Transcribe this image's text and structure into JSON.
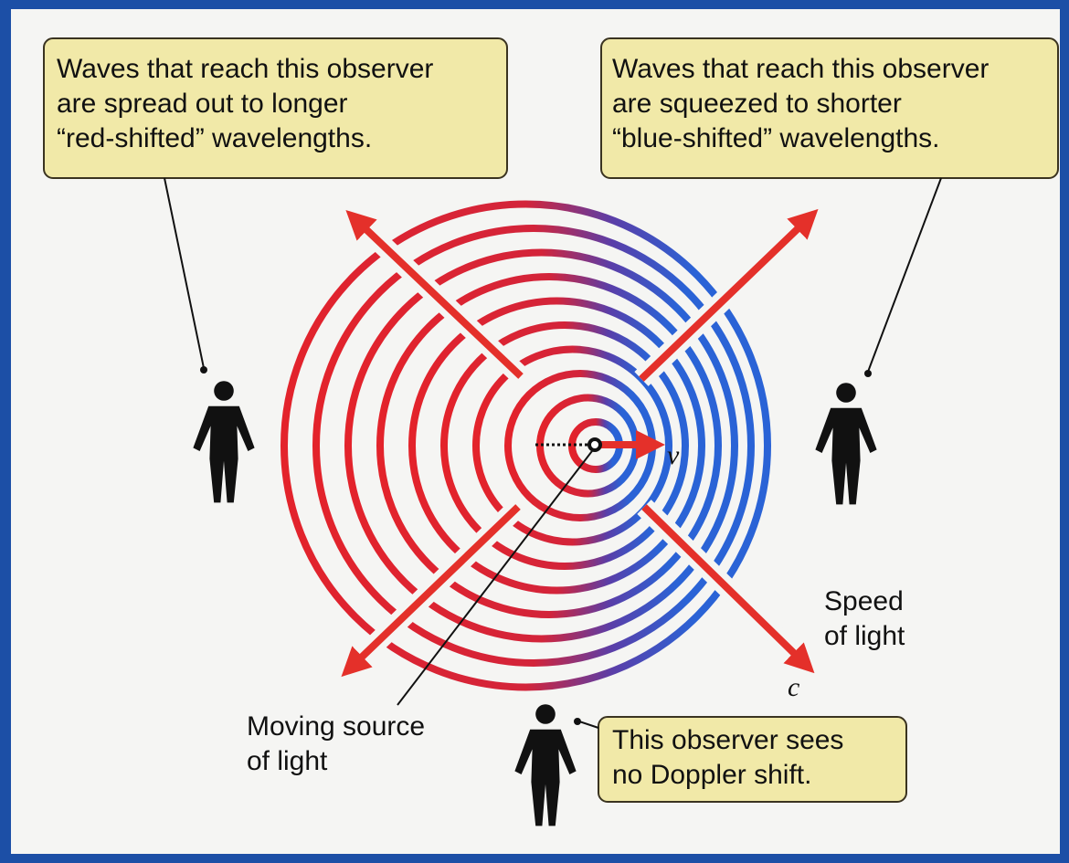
{
  "left_callout": {
    "lines": [
      "Waves that reach this observer",
      "are spread out to longer",
      "“red-shifted” wavelengths."
    ]
  },
  "right_callout": {
    "lines": [
      "Waves that reach this observer",
      "are squeezed to shorter",
      "“blue-shifted” wavelengths."
    ]
  },
  "bottom_callout": {
    "lines": [
      "This observer sees",
      "no Doppler shift."
    ]
  },
  "source_label": {
    "lines": [
      "Moving source",
      "of light"
    ]
  },
  "speed_label": {
    "lines": [
      "Speed",
      "of light"
    ]
  },
  "c_label": "c",
  "v_label": "v"
}
